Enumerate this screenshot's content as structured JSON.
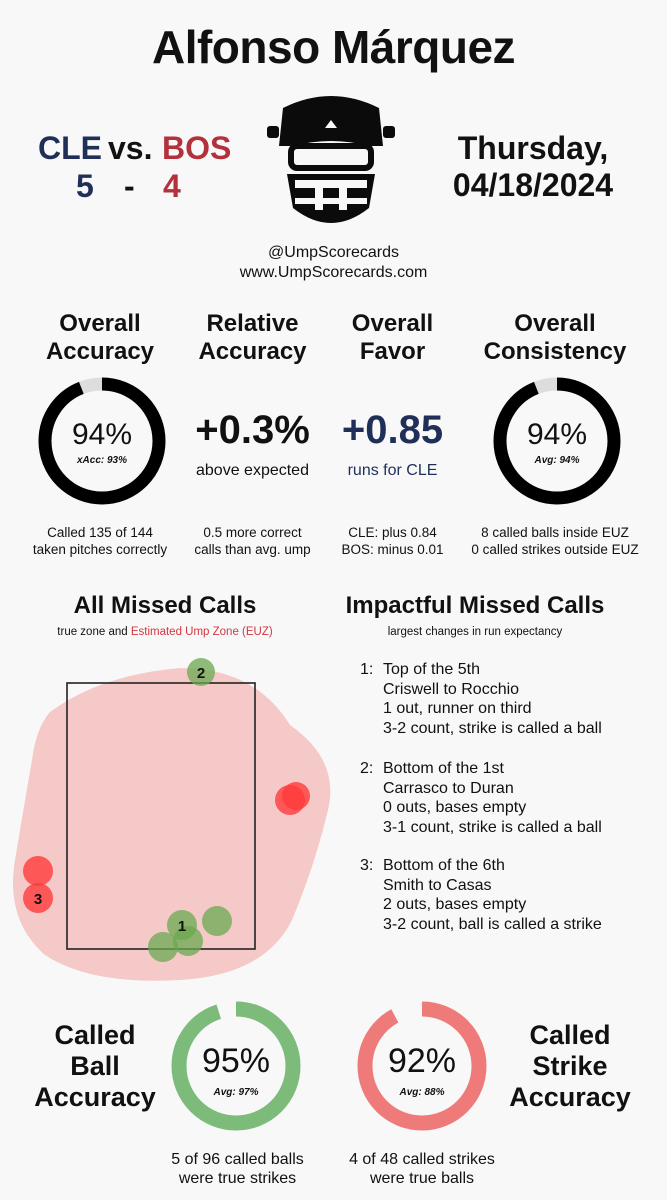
{
  "title": "Alfonso Márquez",
  "game": {
    "away_team": "CLE",
    "vs": "vs.",
    "home_team": "BOS",
    "away_score": "5",
    "dash": "-",
    "home_score": "4",
    "day": "Thursday,",
    "date": "04/18/2024"
  },
  "social": {
    "handle": "@UmpScorecards",
    "website": "www.UmpScorecards.com"
  },
  "stats": {
    "overall_accuracy": {
      "head1": "Overall",
      "head2": "Accuracy",
      "value": "94%",
      "value_fraction": 0.94,
      "sub": "xAcc: 93%",
      "foot1": "Called 135 of 144",
      "foot2": "taken pitches correctly"
    },
    "relative_accuracy": {
      "head1": "Relative",
      "head2": "Accuracy",
      "value": "+0.3%",
      "caption": "above expected",
      "foot1": "0.5 more correct",
      "foot2": "calls than avg. ump"
    },
    "overall_favor": {
      "head1": "Overall",
      "head2": "Favor",
      "value": "+0.85",
      "caption": "runs for CLE",
      "foot1": "CLE: plus 0.84",
      "foot2": "BOS: minus 0.01"
    },
    "overall_consistency": {
      "head1": "Overall",
      "head2": "Consistency",
      "value": "94%",
      "value_fraction": 0.94,
      "sub": "Avg: 94%",
      "foot1": "8 called balls inside EUZ",
      "foot2": "0 called strikes outside EUZ"
    }
  },
  "missed_calls": {
    "heading": "All Missed Calls",
    "sub_prefix": "true zone and ",
    "sub_euz": "Estimated Ump Zone (EUZ)",
    "labels": [
      "1",
      "2",
      "3"
    ],
    "colors": {
      "ball_missed": "#6aa84f",
      "strike_missed": "#ff3b3b",
      "euz": "#f4b8b8"
    }
  },
  "impactful": {
    "heading": "Impactful Missed Calls",
    "sub": "largest changes in run expectancy",
    "items": [
      {
        "num": "1:",
        "line1": "Top of the 5th",
        "line2": "Criswell to Rocchio",
        "line3": "1 out, runner on third",
        "line4": "3-2 count, strike is called a ball"
      },
      {
        "num": "2:",
        "line1": "Bottom of the 1st",
        "line2": "Carrasco to Duran",
        "line3": "0 outs, bases empty",
        "line4": "3-1 count, strike is called a ball"
      },
      {
        "num": "3:",
        "line1": "Bottom of the 6th",
        "line2": "Smith to Casas",
        "line3": "2 outs, bases empty",
        "line4": "3-2 count, ball is called a strike"
      }
    ]
  },
  "called_ball": {
    "label1": "Called",
    "label2": "Ball",
    "label3": "Accuracy",
    "value": "95%",
    "value_fraction": 0.95,
    "sub": "Avg: 97%",
    "foot1": "5 of 96 called balls",
    "foot2": "were true strikes",
    "color": "#7dbb7a"
  },
  "called_strike": {
    "label1": "Called",
    "label2": "Strike",
    "label3": "Accuracy",
    "value": "92%",
    "value_fraction": 0.92,
    "sub": "Avg: 88%",
    "foot1": "4 of 48 called strikes",
    "foot2": "were true balls",
    "color": "#ef7a7a"
  }
}
